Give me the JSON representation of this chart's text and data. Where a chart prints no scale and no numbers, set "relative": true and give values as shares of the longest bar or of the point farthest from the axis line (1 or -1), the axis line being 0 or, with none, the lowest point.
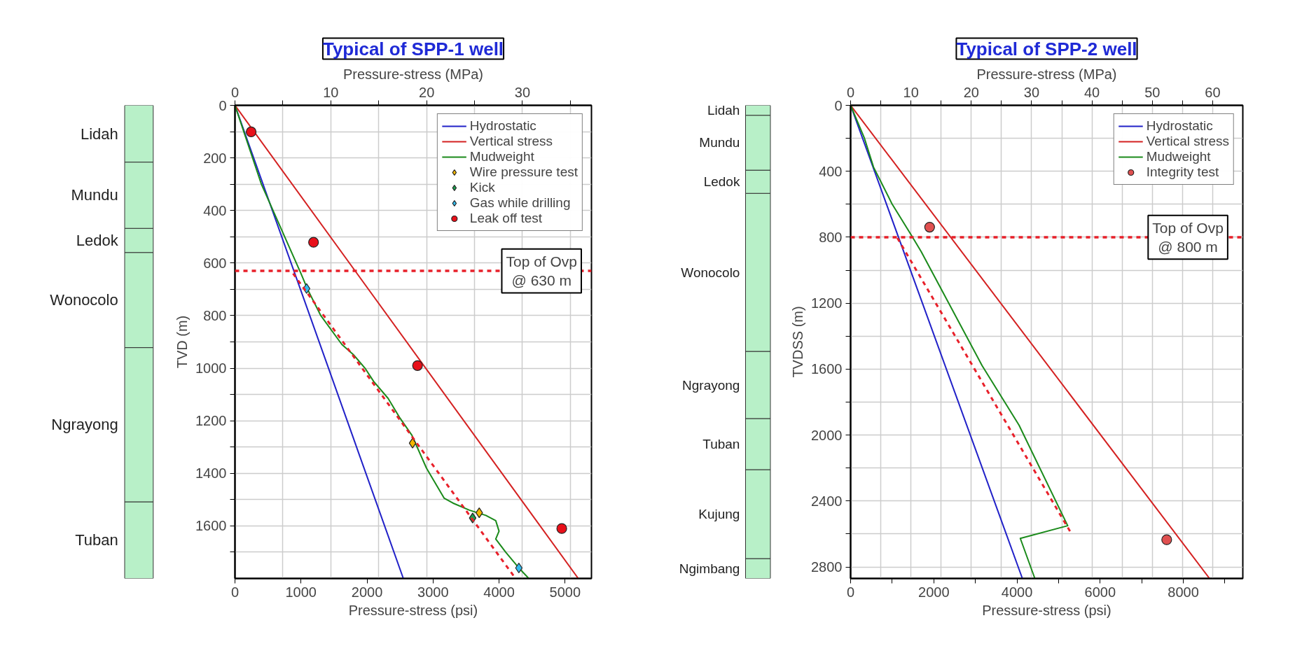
{
  "chart_data": [
    {
      "type": "bar",
      "stacked": true,
      "relative": true,
      "categories": [
        null
      ],
      "series": [
        {
          "name": "Tuban",
          "color": "#b8f0c8",
          "values": [
            0.162
          ]
        },
        {
          "name": "Ngrayong",
          "color": "#b8f0c8",
          "values": [
            0.326
          ]
        },
        {
          "name": "Wonocolo",
          "color": "#b8f0c8",
          "values": [
            0.201
          ]
        },
        {
          "name": "Ledok",
          "color": "#b8f0c8",
          "values": [
            0.051
          ]
        },
        {
          "name": "Mundu",
          "color": "#b8f0c8",
          "values": [
            0.14
          ]
        },
        {
          "name": "Lidah",
          "color": "#b8f0c8",
          "values": [
            0.12
          ]
        }
      ]
    },
    {
      "type": "line",
      "title": "Typical of SPP-1 well",
      "xlabel": "Pressure-stress (psi)",
      "x2label": "Pressure-stress (MPa)",
      "ylabel": "TVD (m)",
      "xlim": [
        0,
        5400
      ],
      "xticks": [
        0,
        1000,
        2000,
        3000,
        4000,
        5000
      ],
      "x2lim": [
        0,
        37.2
      ],
      "x2ticks": [
        0,
        {
          "value": 5,
          "label": null
        },
        10,
        {
          "value": 15,
          "label": null
        },
        20,
        {
          "value": 25,
          "label": null
        },
        30,
        {
          "value": 35,
          "label": null
        }
      ],
      "ylim": [
        1800,
        0
      ],
      "yticks": [
        0,
        {
          "value": 100,
          "label": null
        },
        200,
        {
          "value": 300,
          "label": null
        },
        400,
        {
          "value": 500,
          "label": null
        },
        600,
        {
          "value": 700,
          "label": null
        },
        800,
        {
          "value": 900,
          "label": null
        },
        1000,
        {
          "value": 1100,
          "label": null
        },
        1200,
        {
          "value": 1300,
          "label": null
        },
        1400,
        {
          "value": 1500,
          "label": null
        },
        1600,
        {
          "value": 1700,
          "label": null
        }
      ],
      "grid": true,
      "legend": "top right",
      "series": [
        {
          "name": "Hydrostatic",
          "type": "line",
          "color": "#2020c8",
          "line_style": "solid",
          "marker": "none",
          "x": [
            0,
            2550
          ],
          "values": [
            0,
            1800
          ]
        },
        {
          "name": "Vertical stress",
          "type": "line",
          "color": "#d42020",
          "line_style": "solid",
          "marker": "none",
          "x": [
            0,
            5200
          ],
          "values": [
            0,
            1800
          ]
        },
        {
          "name": "Mudweight",
          "type": "line",
          "color": "#1a8a1a",
          "line_style": "solid",
          "marker": "none",
          "x": [
            0,
            400,
            1000,
            1100,
            1300,
            1620,
            1800,
            1970,
            2100,
            2320,
            2500,
            2680,
            2900,
            3170,
            3300,
            3550,
            3800,
            3950,
            4000,
            3950,
            4100,
            4300,
            4450
          ],
          "values": [
            0,
            300,
            640,
            700,
            800,
            910,
            950,
            1000,
            1050,
            1115,
            1190,
            1255,
            1380,
            1495,
            1513,
            1540,
            1560,
            1580,
            1620,
            1650,
            1700,
            1760,
            1800
          ]
        },
        {
          "name": "Wire pressure test",
          "type": "scatter",
          "color": "#f5b800",
          "marker": "diamond",
          "x": [
            2690,
            3700
          ],
          "values": [
            1285,
            1550
          ]
        },
        {
          "name": "Kick",
          "type": "scatter",
          "color": "#1fa050",
          "marker": "diamond",
          "x": [
            3600
          ],
          "values": [
            1570
          ]
        },
        {
          "name": "Gas while drilling",
          "type": "scatter",
          "color": "#33bbee",
          "marker": "diamond",
          "x": [
            1085,
            4300
          ],
          "values": [
            697,
            1760
          ]
        },
        {
          "name": "Leak off test",
          "type": "scatter",
          "color": "#e8101a",
          "marker": "circle",
          "x": [
            245,
            1190,
            2765,
            4950
          ],
          "values": [
            101,
            521,
            990,
            1610
          ]
        },
        {
          "type": "line",
          "color": "#e8202a",
          "line_style": "dashed",
          "marker": "none",
          "x": [
            880,
            4250
          ],
          "values": [
            640,
            1800
          ]
        }
      ],
      "ref_lines": [
        {
          "axis": "y",
          "value": 630,
          "label": "Top of Ovp\n@ 630 m",
          "color": "#e8202a",
          "line_style": "dashed"
        }
      ]
    },
    {
      "type": "bar",
      "stacked": true,
      "relative": true,
      "categories": [
        null
      ],
      "series": [
        {
          "name": "Ngimbang",
          "color": "#b8f0c8",
          "values": [
            0.042
          ]
        },
        {
          "name": "Kujung",
          "color": "#b8f0c8",
          "values": [
            0.188
          ]
        },
        {
          "name": "Tuban",
          "color": "#b8f0c8",
          "values": [
            0.108
          ]
        },
        {
          "name": "Ngrayong",
          "color": "#b8f0c8",
          "values": [
            0.142
          ]
        },
        {
          "name": "Wonocolo",
          "color": "#b8f0c8",
          "values": [
            0.334
          ]
        },
        {
          "name": "Ledok",
          "color": "#b8f0c8",
          "values": [
            0.049
          ]
        },
        {
          "name": "Mundu",
          "color": "#b8f0c8",
          "values": [
            0.116
          ]
        },
        {
          "name": "Lidah",
          "color": "#b8f0c8",
          "values": [
            0.021
          ]
        }
      ]
    },
    {
      "type": "line",
      "title": "Typical of SPP-2 well",
      "xlabel": "Pressure-stress (psi)",
      "x2label": "Pressure-stress (MPa)",
      "ylabel": "TVDSS (m)",
      "xlim": [
        0,
        9430
      ],
      "xticks": [
        0,
        {
          "value": 1000,
          "label": null
        },
        2000,
        {
          "value": 3000,
          "label": null
        },
        4000,
        {
          "value": 5000,
          "label": null
        },
        6000,
        {
          "value": 7000,
          "label": null
        },
        8000,
        {
          "value": 9000,
          "label": null
        }
      ],
      "x2lim": [
        0,
        65
      ],
      "x2ticks": [
        0,
        {
          "value": 5,
          "label": null
        },
        10,
        {
          "value": 15,
          "label": null
        },
        20,
        {
          "value": 25,
          "label": null
        },
        30,
        {
          "value": 35,
          "label": null
        },
        40,
        {
          "value": 45,
          "label": null
        },
        50,
        {
          "value": 55,
          "label": null
        },
        60
      ],
      "ylim": [
        2870,
        0
      ],
      "yticks": [
        0,
        {
          "value": 200,
          "label": null
        },
        400,
        {
          "value": 600,
          "label": null
        },
        800,
        {
          "value": 1000,
          "label": null
        },
        1200,
        {
          "value": 1400,
          "label": null
        },
        1600,
        {
          "value": 1800,
          "label": null
        },
        2000,
        {
          "value": 2200,
          "label": null
        },
        2400,
        {
          "value": 2600,
          "label": null
        },
        2800
      ],
      "grid": true,
      "legend": "top right",
      "series": [
        {
          "name": "Hydrostatic",
          "type": "line",
          "color": "#2020c8",
          "line_style": "solid",
          "marker": "none",
          "x": [
            0,
            4130
          ],
          "values": [
            0,
            2870
          ]
        },
        {
          "name": "Vertical stress",
          "type": "line",
          "color": "#d42020",
          "line_style": "solid",
          "marker": "none",
          "x": [
            0,
            8630
          ],
          "values": [
            0,
            2870
          ]
        },
        {
          "name": "Mudweight",
          "type": "line",
          "color": "#1a8a1a",
          "line_style": "solid",
          "marker": "none",
          "x": [
            0,
            330,
            552,
            1000,
            1470,
            1697,
            3160,
            4050,
            5220,
            4080,
            4430
          ],
          "values": [
            0,
            198,
            375,
            600,
            792,
            887,
            1578,
            1940,
            2550,
            2627,
            2870
          ]
        },
        {
          "name": "Integrity test",
          "type": "scatter",
          "color": "#e05050",
          "marker": "circle",
          "x": [
            1900,
            7600
          ],
          "values": [
            739,
            2635
          ]
        },
        {
          "type": "line",
          "color": "#e8202a",
          "line_style": "dashed",
          "marker": "none",
          "x": [
            1125,
            5290
          ],
          "values": [
            805,
            2590
          ]
        }
      ],
      "ref_lines": [
        {
          "axis": "y",
          "value": 800,
          "label": "Top of Ovp\n@ 800 m",
          "color": "#e8202a",
          "line_style": "dashed"
        }
      ]
    }
  ]
}
